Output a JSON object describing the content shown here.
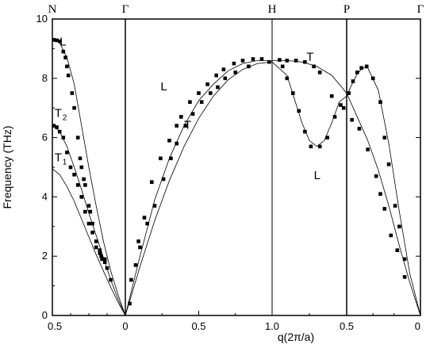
{
  "chart_data": {
    "type": "scatter",
    "title": "",
    "xlabel": "q(2π/a)",
    "ylabel": "Frequency (THz)",
    "ylim": [
      0,
      10
    ],
    "yticks": [
      "0",
      "2",
      "4",
      "6",
      "8",
      "10"
    ],
    "xticks": [
      "0.5",
      "0",
      "0.5",
      "1.0",
      "0.5",
      "0"
    ],
    "symmetry_points": [
      "N",
      "Γ",
      "H",
      "P",
      "Γ"
    ],
    "segments": [
      {
        "name": "N-Γ",
        "from": "N",
        "to": "Γ"
      },
      {
        "name": "Γ-H",
        "from": "Γ",
        "to": "H"
      },
      {
        "name": "H-P",
        "from": "H",
        "to": "P"
      },
      {
        "name": "P-Γ",
        "from": "P",
        "to": "Γ"
      }
    ],
    "branch_labels": [
      {
        "text": "L",
        "sub": "",
        "x": 0.1,
        "y": 9.1
      },
      {
        "text": "T",
        "sub": "2",
        "x": 0.03,
        "y": 6.7
      },
      {
        "text": "T",
        "sub": "1",
        "x": 0.03,
        "y": 5.2
      },
      {
        "text": "L",
        "sub": "",
        "x": 1.24,
        "y": 7.6
      },
      {
        "text": "T",
        "sub": "",
        "x": 1.4,
        "y": 6.3
      },
      {
        "text": "T",
        "sub": "",
        "x": 2.23,
        "y": 8.6
      },
      {
        "text": "L",
        "sub": "",
        "x": 2.28,
        "y": 4.6
      }
    ],
    "series": [
      {
        "curve": [
          [
            0,
            9.35
          ],
          [
            0.1,
            9.2
          ],
          [
            0.2,
            8.7
          ],
          [
            0.3,
            7.8
          ],
          [
            0.4,
            6.4
          ],
          [
            0.5,
            5.0
          ],
          [
            0.6,
            3.7
          ],
          [
            0.7,
            2.5
          ],
          [
            0.8,
            1.5
          ],
          [
            0.9,
            0.7
          ],
          [
            1.0,
            0
          ]
        ],
        "points": [
          [
            0.02,
            9.3
          ],
          [
            0.06,
            9.28
          ],
          [
            0.1,
            9.25
          ],
          [
            0.15,
            8.9
          ],
          [
            0.18,
            8.7
          ],
          [
            0.2,
            8.4
          ],
          [
            0.22,
            8.1
          ],
          [
            0.27,
            7.5
          ],
          [
            0.3,
            7.0
          ],
          [
            0.35,
            6.0
          ],
          [
            0.38,
            5.3
          ],
          [
            0.4,
            5.0
          ],
          [
            0.43,
            4.6
          ],
          [
            0.45,
            4.4
          ],
          [
            0.5,
            3.7
          ],
          [
            0.52,
            3.5
          ],
          [
            0.55,
            3.1
          ],
          [
            0.6,
            2.5
          ],
          [
            0.65,
            2.2
          ],
          [
            0.67,
            2.0
          ],
          [
            0.72,
            1.9
          ],
          [
            0.75,
            1.6
          ],
          [
            0.8,
            1.2
          ]
        ]
      },
      {
        "curve": [
          [
            0,
            6.45
          ],
          [
            0.1,
            6.2
          ],
          [
            0.2,
            5.7
          ],
          [
            0.3,
            5.0
          ],
          [
            0.4,
            4.25
          ],
          [
            0.5,
            3.45
          ],
          [
            0.6,
            2.7
          ],
          [
            0.7,
            1.95
          ],
          [
            0.8,
            1.2
          ],
          [
            0.9,
            0.55
          ],
          [
            1.0,
            0
          ]
        ],
        "points": [
          [
            0.02,
            6.4
          ],
          [
            0.06,
            6.35
          ],
          [
            0.1,
            6.2
          ],
          [
            0.15,
            6.0
          ],
          [
            0.2,
            5.5
          ],
          [
            0.25,
            5.0
          ],
          [
            0.3,
            4.75
          ],
          [
            0.35,
            4.4
          ],
          [
            0.4,
            4.0
          ],
          [
            0.45,
            3.5
          ],
          [
            0.5,
            3.1
          ],
          [
            0.55,
            2.8
          ],
          [
            0.6,
            2.3
          ],
          [
            0.65,
            2.1
          ],
          [
            0.68,
            1.9
          ],
          [
            0.72,
            1.8
          ]
        ]
      },
      {
        "curve": [
          [
            0,
            4.95
          ],
          [
            0.1,
            4.75
          ],
          [
            0.2,
            4.35
          ],
          [
            0.3,
            3.85
          ],
          [
            0.4,
            3.25
          ],
          [
            0.5,
            2.65
          ],
          [
            0.6,
            2.05
          ],
          [
            0.7,
            1.5
          ],
          [
            0.8,
            0.95
          ],
          [
            0.9,
            0.45
          ],
          [
            1.0,
            0
          ]
        ],
        "points": []
      },
      {
        "curve": [
          [
            1.0,
            0
          ],
          [
            1.1,
            2.0
          ],
          [
            1.2,
            3.9
          ],
          [
            1.3,
            5.3
          ],
          [
            1.4,
            6.4
          ],
          [
            1.5,
            7.25
          ],
          [
            1.6,
            7.8
          ],
          [
            1.7,
            8.25
          ],
          [
            1.8,
            8.5
          ],
          [
            1.9,
            8.6
          ],
          [
            2.0,
            8.6
          ],
          [
            2.1,
            8.6
          ],
          [
            2.2,
            8.55
          ],
          [
            2.3,
            8.4
          ],
          [
            2.4,
            8.1
          ],
          [
            2.5,
            7.5
          ],
          [
            2.6,
            6.7
          ],
          [
            2.7,
            5.9
          ],
          [
            2.8,
            4.9
          ],
          [
            2.9,
            3.7
          ],
          [
            3.0,
            2.35
          ],
          [
            3.1,
            1.1
          ],
          [
            3.2,
            0
          ]
        ],
        "points": [
          [
            1.04,
            1.2
          ],
          [
            1.09,
            2.5
          ],
          [
            1.13,
            3.3
          ],
          [
            1.18,
            4.5
          ],
          [
            1.24,
            5.3
          ],
          [
            1.3,
            5.9
          ],
          [
            1.35,
            6.4
          ],
          [
            1.38,
            6.7
          ],
          [
            1.44,
            7.2
          ],
          [
            1.5,
            7.5
          ],
          [
            1.56,
            7.8
          ],
          [
            1.62,
            8.1
          ],
          [
            1.67,
            8.3
          ],
          [
            1.74,
            8.5
          ],
          [
            1.8,
            8.6
          ],
          [
            1.87,
            8.65
          ],
          [
            1.93,
            8.65
          ],
          [
            2.05,
            8.62
          ],
          [
            2.1,
            8.6
          ],
          [
            2.16,
            8.6
          ],
          [
            2.22,
            8.55
          ],
          [
            2.28,
            8.4
          ],
          [
            2.32,
            8.2
          ],
          [
            2.4,
            7.4
          ],
          [
            2.48,
            7.0
          ],
          [
            2.55,
            6.6
          ],
          [
            2.62,
            6.3
          ],
          [
            2.7,
            5.6
          ],
          [
            2.78,
            4.7
          ],
          [
            2.82,
            4.1
          ],
          [
            2.86,
            3.6
          ],
          [
            2.92,
            2.7
          ],
          [
            2.98,
            2.2
          ],
          [
            3.05,
            1.3
          ]
        ]
      },
      {
        "curve": [
          [
            1.0,
            0
          ],
          [
            1.1,
            1.65
          ],
          [
            1.2,
            3.2
          ],
          [
            1.3,
            4.55
          ],
          [
            1.4,
            5.7
          ],
          [
            1.5,
            6.65
          ],
          [
            1.6,
            7.4
          ],
          [
            1.7,
            7.95
          ],
          [
            1.8,
            8.3
          ],
          [
            1.9,
            8.5
          ],
          [
            2.0,
            8.55
          ],
          [
            2.1,
            8.1
          ],
          [
            2.15,
            7.3
          ],
          [
            2.2,
            6.5
          ],
          [
            2.25,
            5.9
          ],
          [
            2.3,
            5.7
          ],
          [
            2.35,
            5.9
          ],
          [
            2.4,
            6.5
          ],
          [
            2.45,
            7.2
          ],
          [
            2.5,
            7.4
          ],
          [
            2.55,
            7.8
          ],
          [
            2.6,
            8.15
          ],
          [
            2.65,
            8.35
          ],
          [
            2.7,
            8.35
          ],
          [
            2.8,
            7.6
          ],
          [
            2.9,
            5.8
          ],
          [
            3.0,
            3.5
          ],
          [
            3.1,
            1.4
          ],
          [
            3.2,
            0
          ]
        ],
        "points": [
          [
            1.03,
            0.4
          ],
          [
            1.07,
            1.7
          ],
          [
            1.1,
            2.3
          ],
          [
            1.15,
            3.1
          ],
          [
            1.2,
            3.7
          ],
          [
            1.26,
            4.6
          ],
          [
            1.31,
            5.3
          ],
          [
            1.35,
            5.8
          ],
          [
            1.41,
            6.4
          ],
          [
            1.46,
            6.8
          ],
          [
            1.52,
            7.2
          ],
          [
            1.58,
            7.5
          ],
          [
            1.63,
            7.7
          ],
          [
            1.68,
            8.0
          ],
          [
            1.75,
            8.2
          ],
          [
            1.84,
            8.4
          ],
          [
            1.98,
            8.55
          ],
          [
            2.07,
            8.4
          ],
          [
            2.1,
            8.0
          ],
          [
            2.14,
            7.5
          ],
          [
            2.18,
            6.9
          ],
          [
            2.22,
            6.2
          ],
          [
            2.26,
            5.7
          ],
          [
            2.32,
            5.7
          ],
          [
            2.37,
            6.0
          ],
          [
            2.42,
            6.7
          ],
          [
            2.46,
            7.1
          ],
          [
            2.52,
            7.5
          ],
          [
            2.56,
            7.9
          ],
          [
            2.6,
            8.2
          ],
          [
            2.64,
            8.35
          ],
          [
            2.69,
            8.4
          ],
          [
            2.75,
            8.0
          ],
          [
            2.82,
            7.2
          ],
          [
            2.86,
            6.0
          ],
          [
            2.9,
            5.1
          ],
          [
            2.96,
            3.7
          ],
          [
            3.0,
            3.0
          ],
          [
            3.05,
            1.9
          ]
        ]
      }
    ]
  }
}
